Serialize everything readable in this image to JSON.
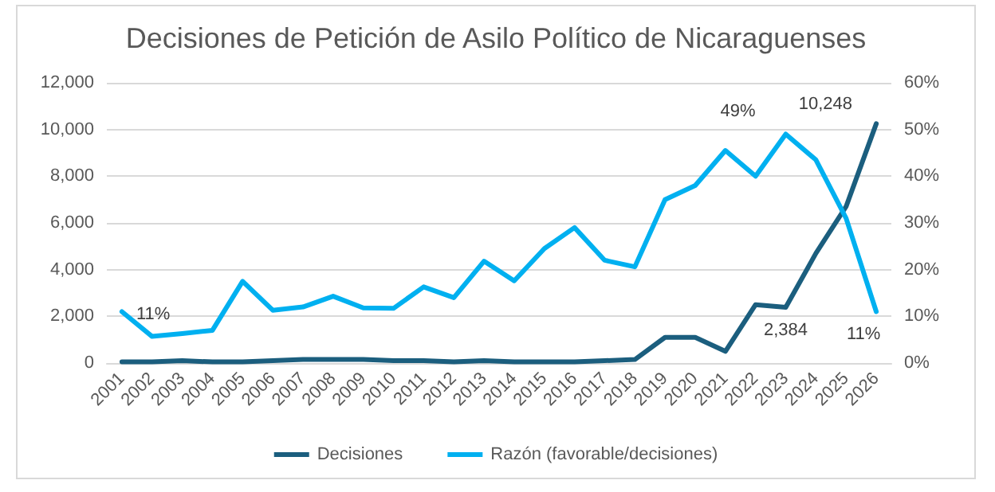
{
  "chart_data": {
    "type": "line",
    "title": "Decisiones de Petición de Asilo Político de Nicaraguenses",
    "categories": [
      "2001",
      "2002",
      "2003",
      "2004",
      "2005",
      "2006",
      "2007",
      "2008",
      "2009",
      "2010",
      "2011",
      "2012",
      "2013",
      "2014",
      "2015",
      "2016",
      "2017",
      "2018",
      "2019",
      "2020",
      "2021",
      "2022",
      "2023",
      "2024",
      "2025",
      "2026"
    ],
    "series": [
      {
        "name": "Decisiones",
        "color": "#1b5e7e",
        "values": [
          50,
          50,
          100,
          50,
          50,
          100,
          150,
          150,
          150,
          100,
          100,
          50,
          100,
          50,
          50,
          50,
          100,
          150,
          1100,
          1100,
          500,
          2500,
          2384,
          4700,
          6700,
          10248
        ],
        "value_labels": [
          null,
          null,
          null,
          null,
          null,
          null,
          null,
          null,
          null,
          null,
          null,
          null,
          null,
          null,
          null,
          null,
          null,
          null,
          null,
          null,
          null,
          null,
          "2,384",
          null,
          null,
          "10,248"
        ]
      },
      {
        "name": "Razón (favorable/decisiones)",
        "color": "#00b0f0",
        "axis": "y2",
        "values": [
          11,
          5.7,
          6.3,
          7,
          17.5,
          11.3,
          12,
          14.3,
          11.8,
          11.7,
          16.3,
          14,
          21.8,
          17.6,
          24.5,
          29,
          22,
          20.6,
          35,
          38,
          45.5,
          40,
          49,
          43.5,
          31,
          11
        ],
        "value_labels": [
          "11%",
          null,
          null,
          null,
          null,
          null,
          null,
          null,
          null,
          null,
          null,
          null,
          null,
          null,
          null,
          null,
          null,
          null,
          null,
          null,
          null,
          null,
          "49%",
          null,
          null,
          "11%"
        ]
      }
    ],
    "ylim": [
      0,
      12000
    ],
    "yticks": [
      {
        "value": 0,
        "label": "0"
      },
      {
        "value": 2000,
        "label": "2,000"
      },
      {
        "value": 4000,
        "label": "4,000"
      },
      {
        "value": 6000,
        "label": "6,000"
      },
      {
        "value": 8000,
        "label": "8,000"
      },
      {
        "value": 10000,
        "label": "10,000"
      },
      {
        "value": 12000,
        "label": "12,000"
      }
    ],
    "y2lim": [
      0,
      60
    ],
    "y2ticks": [
      {
        "value": 0,
        "label": "0%"
      },
      {
        "value": 10,
        "label": "10%"
      },
      {
        "value": 20,
        "label": "20%"
      },
      {
        "value": 30,
        "label": "30%"
      },
      {
        "value": 40,
        "label": "40%"
      },
      {
        "value": 50,
        "label": "50%"
      },
      {
        "value": 60,
        "label": "60%"
      }
    ],
    "grid": "y",
    "legend": "bottom",
    "marker": "none",
    "line_style": "solid"
  }
}
